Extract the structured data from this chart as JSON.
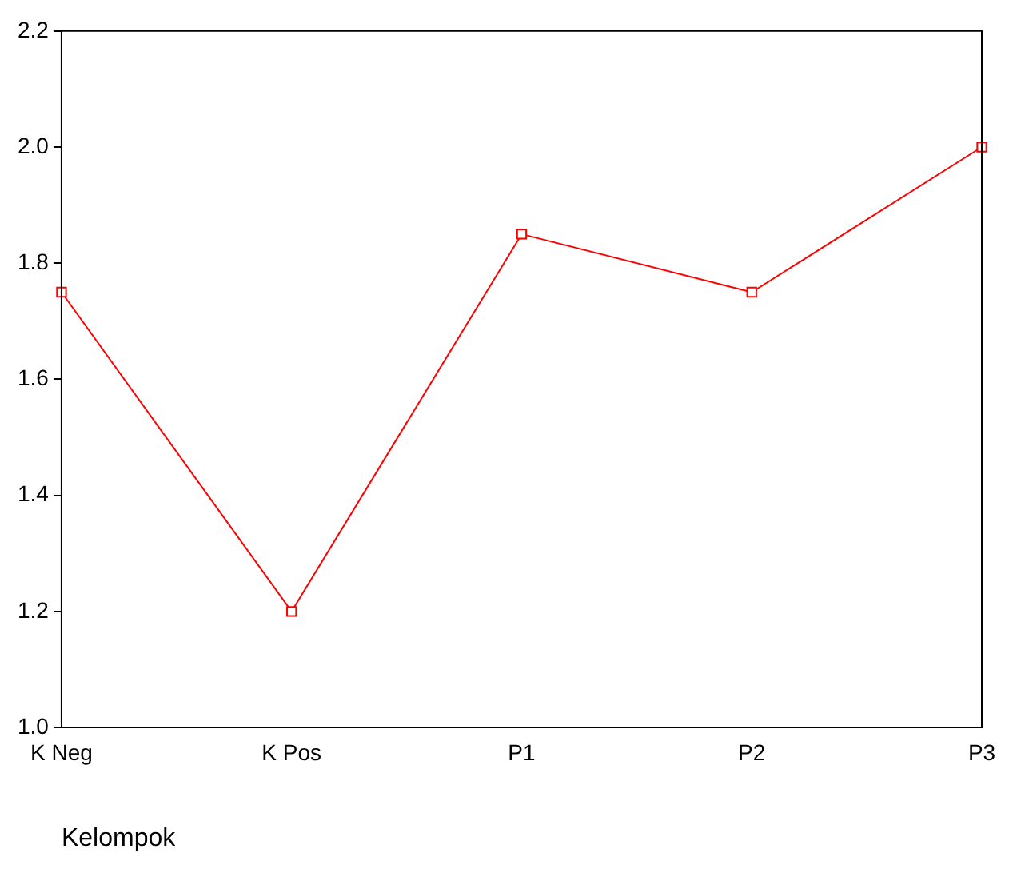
{
  "chart_data": {
    "type": "line",
    "xlabel": "Kelompok",
    "categories": [
      "K Neg",
      "K Pos",
      "P1",
      "P2",
      "P3"
    ],
    "series": [
      {
        "color": "#ff0000",
        "values": [
          1.75,
          1.2,
          1.85,
          1.75,
          2.0
        ]
      }
    ],
    "ylim": [
      1.0,
      2.2
    ],
    "yticks": [
      {
        "value": 1,
        "label": "1.0"
      },
      1.2,
      1.4,
      1.6,
      1.8,
      {
        "value": 2,
        "label": "2.0"
      },
      2.2
    ],
    "grid": false,
    "legend": false,
    "marker": "square",
    "line_style": "solid"
  }
}
